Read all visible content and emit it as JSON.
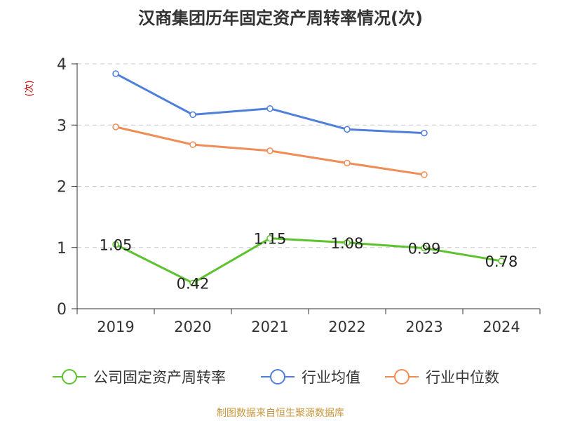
{
  "chart_data": {
    "type": "line",
    "title": "汉商集团历年固定资产周转率情况(次)",
    "ylabel": "(次)",
    "xlabel": "",
    "categories": [
      "2019",
      "2020",
      "2021",
      "2022",
      "2023",
      "2024"
    ],
    "ylim": [
      0,
      4
    ],
    "yticks": [
      0,
      1,
      2,
      3,
      4
    ],
    "grid": true,
    "legend_position": "bottom",
    "series": [
      {
        "name": "公司固定资产周转率",
        "color": "#5cc22d",
        "values": [
          1.05,
          0.42,
          1.15,
          1.08,
          0.99,
          0.78
        ],
        "labels": [
          "1.05",
          "0.42",
          "1.15",
          "1.08",
          "0.99",
          "0.78"
        ]
      },
      {
        "name": "行业均值",
        "color": "#4f7fdb",
        "values": [
          3.84,
          3.17,
          3.27,
          2.93,
          2.87,
          null
        ]
      },
      {
        "name": "行业中位数",
        "color": "#f08c55",
        "values": [
          2.97,
          2.68,
          2.58,
          2.38,
          2.19,
          null
        ]
      }
    ]
  },
  "source": "制图数据来自恒生聚源数据库"
}
